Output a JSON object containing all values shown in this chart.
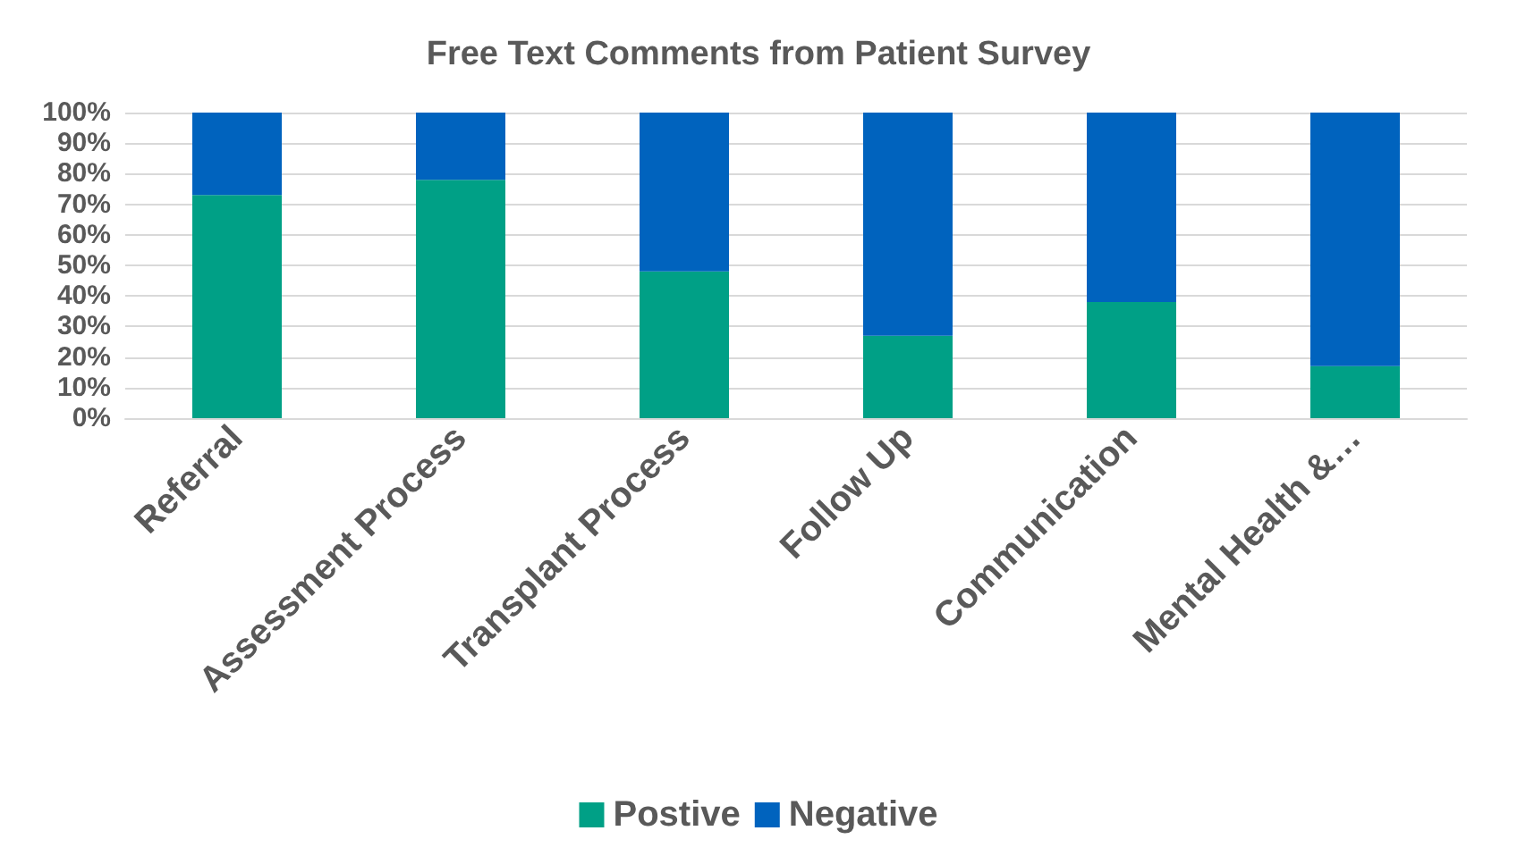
{
  "chart_data": {
    "type": "bar",
    "stacked": true,
    "title": "Free Text Comments from Patient Survey",
    "categories": [
      "Referral",
      "Assessment Process",
      "Transplant Process",
      "Follow Up",
      "Communication",
      "Mental Health &…"
    ],
    "series": [
      {
        "name": "Postive",
        "color": "#00a086",
        "values": [
          73,
          78,
          48,
          27,
          38,
          17
        ]
      },
      {
        "name": "Negative",
        "color": "#0063be",
        "values": [
          27,
          22,
          52,
          73,
          62,
          83
        ]
      }
    ],
    "ylim": [
      0,
      100
    ],
    "yticks": [
      {
        "value": 0,
        "label": "0%"
      },
      {
        "value": 10,
        "label": "10%"
      },
      {
        "value": 20,
        "label": "20%"
      },
      {
        "value": 30,
        "label": "30%"
      },
      {
        "value": 40,
        "label": "40%"
      },
      {
        "value": 50,
        "label": "50%"
      },
      {
        "value": 60,
        "label": "60%"
      },
      {
        "value": 70,
        "label": "70%"
      },
      {
        "value": 80,
        "label": "80%"
      },
      {
        "value": 90,
        "label": "90%"
      },
      {
        "value": 100,
        "label": "100%"
      }
    ],
    "grid": "y",
    "legend": "bottom"
  }
}
